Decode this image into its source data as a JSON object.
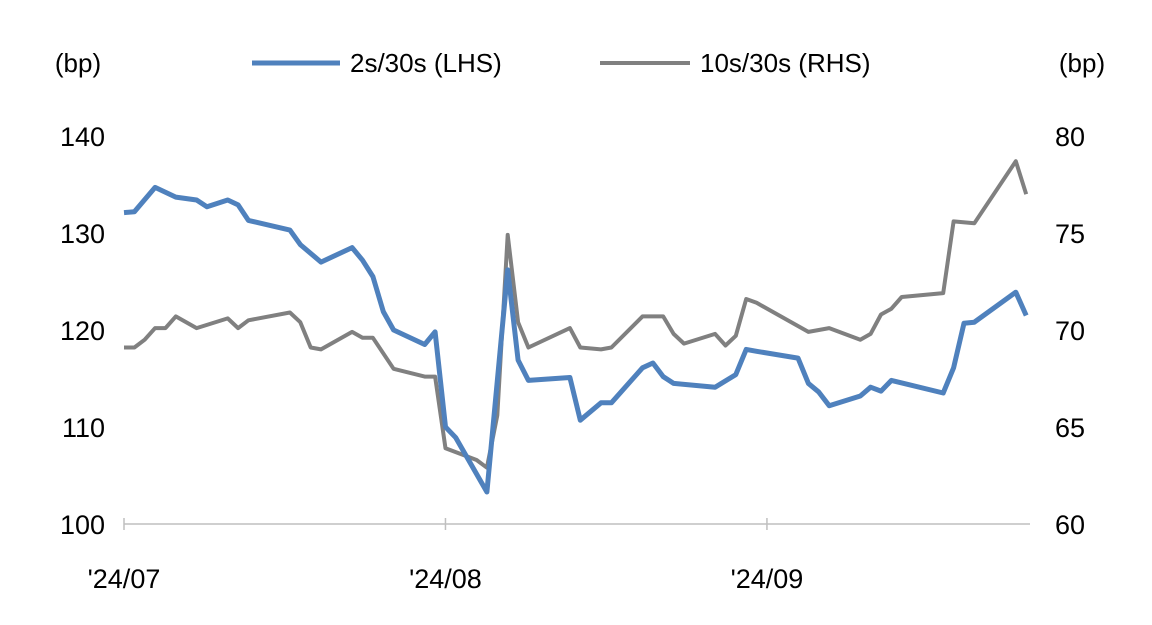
{
  "chart_data": {
    "type": "line",
    "title": "",
    "left_axis": {
      "unit_label": "(bp)",
      "ylim": [
        100,
        140
      ],
      "ticks": [
        "100",
        "110",
        "120",
        "130",
        "140"
      ]
    },
    "right_axis": {
      "unit_label": "(bp)",
      "ylim": [
        60,
        80
      ],
      "ticks": [
        "60",
        "65",
        "70",
        "75",
        "80"
      ]
    },
    "x_ticks": [
      {
        "date": "2024-07-01",
        "label": "'24/07"
      },
      {
        "date": "2024-08-01",
        "label": "'24/08"
      },
      {
        "date": "2024-09-01",
        "label": "'24/09"
      }
    ],
    "xlim": [
      "2024-07-01",
      "2024-09-27"
    ],
    "grid": false,
    "legend_position": "top",
    "series": [
      {
        "name": "2s/30s (LHS)",
        "axis": "left",
        "color": "#4f81bd",
        "points": [
          [
            "2024-07-01",
            132.1
          ],
          [
            "2024-07-02",
            132.2
          ],
          [
            "2024-07-04",
            134.7
          ],
          [
            "2024-07-06",
            133.7
          ],
          [
            "2024-07-08",
            133.4
          ],
          [
            "2024-07-09",
            132.7
          ],
          [
            "2024-07-11",
            133.4
          ],
          [
            "2024-07-12",
            132.9
          ],
          [
            "2024-07-13",
            131.3
          ],
          [
            "2024-07-17",
            130.3
          ],
          [
            "2024-07-18",
            128.8
          ],
          [
            "2024-07-20",
            127.0
          ],
          [
            "2024-07-23",
            128.5
          ],
          [
            "2024-07-24",
            127.2
          ],
          [
            "2024-07-25",
            125.5
          ],
          [
            "2024-07-26",
            121.9
          ],
          [
            "2024-07-27",
            120.0
          ],
          [
            "2024-07-30",
            118.5
          ],
          [
            "2024-07-31",
            119.8
          ],
          [
            "2024-08-01",
            110.0
          ],
          [
            "2024-08-02",
            108.9
          ],
          [
            "2024-08-05",
            103.3
          ],
          [
            "2024-08-07",
            126.2
          ],
          [
            "2024-08-08",
            116.9
          ],
          [
            "2024-08-09",
            114.8
          ],
          [
            "2024-08-13",
            115.1
          ],
          [
            "2024-08-14",
            110.7
          ],
          [
            "2024-08-16",
            112.5
          ],
          [
            "2024-08-17",
            112.5
          ],
          [
            "2024-08-20",
            116.1
          ],
          [
            "2024-08-21",
            116.6
          ],
          [
            "2024-08-22",
            115.2
          ],
          [
            "2024-08-23",
            114.5
          ],
          [
            "2024-08-27",
            114.1
          ],
          [
            "2024-08-29",
            115.4
          ],
          [
            "2024-08-30",
            118.0
          ],
          [
            "2024-08-31",
            117.8
          ],
          [
            "2024-09-04",
            117.1
          ],
          [
            "2024-09-05",
            114.5
          ],
          [
            "2024-09-06",
            113.6
          ],
          [
            "2024-09-07",
            112.2
          ],
          [
            "2024-09-10",
            113.2
          ],
          [
            "2024-09-11",
            114.1
          ],
          [
            "2024-09-12",
            113.7
          ],
          [
            "2024-09-13",
            114.8
          ],
          [
            "2024-09-18",
            113.5
          ],
          [
            "2024-09-19",
            116.1
          ],
          [
            "2024-09-20",
            120.7
          ],
          [
            "2024-09-21",
            120.8
          ],
          [
            "2024-09-25",
            123.9
          ],
          [
            "2024-09-26",
            121.5
          ]
        ]
      },
      {
        "name": "10s/30s (RHS)",
        "axis": "right",
        "color": "#808080",
        "points": [
          [
            "2024-07-01",
            69.1
          ],
          [
            "2024-07-02",
            69.1
          ],
          [
            "2024-07-03",
            69.5
          ],
          [
            "2024-07-04",
            70.1
          ],
          [
            "2024-07-05",
            70.1
          ],
          [
            "2024-07-06",
            70.7
          ],
          [
            "2024-07-08",
            70.1
          ],
          [
            "2024-07-11",
            70.6
          ],
          [
            "2024-07-12",
            70.1
          ],
          [
            "2024-07-13",
            70.5
          ],
          [
            "2024-07-17",
            70.9
          ],
          [
            "2024-07-18",
            70.4
          ],
          [
            "2024-07-19",
            69.1
          ],
          [
            "2024-07-20",
            69.0
          ],
          [
            "2024-07-23",
            69.9
          ],
          [
            "2024-07-24",
            69.6
          ],
          [
            "2024-07-25",
            69.6
          ],
          [
            "2024-07-27",
            68.0
          ],
          [
            "2024-07-30",
            67.6
          ],
          [
            "2024-07-31",
            67.6
          ],
          [
            "2024-08-01",
            63.9
          ],
          [
            "2024-08-04",
            63.3
          ],
          [
            "2024-08-05",
            62.9
          ],
          [
            "2024-08-06",
            65.6
          ],
          [
            "2024-08-07",
            74.9
          ],
          [
            "2024-08-08",
            70.4
          ],
          [
            "2024-08-09",
            69.1
          ],
          [
            "2024-08-13",
            70.1
          ],
          [
            "2024-08-14",
            69.1
          ],
          [
            "2024-08-16",
            69.0
          ],
          [
            "2024-08-17",
            69.1
          ],
          [
            "2024-08-20",
            70.7
          ],
          [
            "2024-08-22",
            70.7
          ],
          [
            "2024-08-23",
            69.8
          ],
          [
            "2024-08-24",
            69.3
          ],
          [
            "2024-08-27",
            69.8
          ],
          [
            "2024-08-28",
            69.2
          ],
          [
            "2024-08-29",
            69.7
          ],
          [
            "2024-08-30",
            71.6
          ],
          [
            "2024-08-31",
            71.4
          ],
          [
            "2024-09-03",
            70.5
          ],
          [
            "2024-09-05",
            69.9
          ],
          [
            "2024-09-07",
            70.1
          ],
          [
            "2024-09-10",
            69.5
          ],
          [
            "2024-09-11",
            69.8
          ],
          [
            "2024-09-12",
            70.8
          ],
          [
            "2024-09-13",
            71.1
          ],
          [
            "2024-09-14",
            71.7
          ],
          [
            "2024-09-18",
            71.9
          ],
          [
            "2024-09-19",
            75.6
          ],
          [
            "2024-09-21",
            75.5
          ],
          [
            "2024-09-25",
            78.7
          ],
          [
            "2024-09-26",
            77.0
          ]
        ]
      }
    ]
  }
}
